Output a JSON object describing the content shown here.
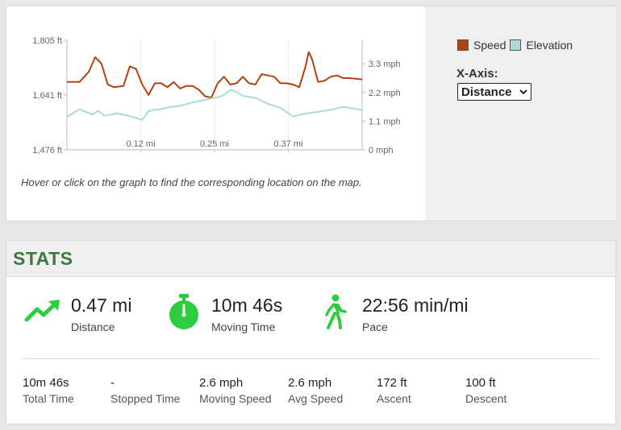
{
  "graph": {
    "hint": "Hover or click on the graph to find the corresponding location on the map.",
    "legend": {
      "speed": "Speed",
      "elevation": "Elevation"
    },
    "x_axis": {
      "label": "X-Axis:",
      "selected": "Distance"
    },
    "colors": {
      "speed": "#b5400f",
      "elevation": "#a9dcd6",
      "grid": "#dddddd"
    }
  },
  "chart_data": {
    "type": "line",
    "x_ticks": [
      "0.12 mi",
      "0.25 mi",
      "0.37 mi"
    ],
    "x_range": [
      0,
      0.47
    ],
    "y_left": {
      "ticks": [
        "1,805 ft",
        "1,641 ft",
        "1,476 ft"
      ],
      "range": [
        1476,
        1805
      ]
    },
    "y_right": {
      "ticks": [
        "3.3 mph",
        "2.2 mph",
        "1.1 mph",
        "0 mph"
      ],
      "range": [
        0,
        4.2
      ]
    },
    "grid": true,
    "series": [
      {
        "name": "Speed",
        "axis": "right",
        "x": [
          0,
          0.02,
          0.035,
          0.045,
          0.055,
          0.065,
          0.075,
          0.09,
          0.1,
          0.11,
          0.12,
          0.13,
          0.14,
          0.15,
          0.16,
          0.17,
          0.18,
          0.19,
          0.2,
          0.21,
          0.22,
          0.23,
          0.24,
          0.25,
          0.26,
          0.27,
          0.28,
          0.29,
          0.3,
          0.31,
          0.32,
          0.33,
          0.34,
          0.35,
          0.36,
          0.37,
          0.38,
          0.385,
          0.39,
          0.4,
          0.41,
          0.42,
          0.43,
          0.44,
          0.45,
          0.47
        ],
        "y": [
          2.6,
          2.6,
          3.0,
          3.55,
          3.3,
          2.5,
          2.4,
          2.45,
          3.2,
          3.1,
          2.5,
          2.1,
          2.55,
          2.55,
          2.4,
          2.6,
          2.35,
          2.45,
          2.45,
          2.3,
          2.05,
          2.0,
          2.55,
          2.8,
          2.5,
          2.55,
          2.8,
          2.55,
          2.5,
          2.9,
          2.85,
          2.8,
          2.55,
          2.55,
          2.5,
          2.4,
          3.2,
          3.75,
          3.5,
          2.6,
          2.65,
          2.8,
          2.85,
          2.75,
          2.75,
          2.7
        ]
      },
      {
        "name": "Elevation",
        "axis": "left",
        "x": [
          0,
          0.02,
          0.04,
          0.05,
          0.06,
          0.08,
          0.1,
          0.12,
          0.13,
          0.14,
          0.15,
          0.16,
          0.18,
          0.2,
          0.22,
          0.24,
          0.25,
          0.26,
          0.27,
          0.28,
          0.3,
          0.32,
          0.34,
          0.36,
          0.38,
          0.4,
          0.42,
          0.44,
          0.45,
          0.47
        ],
        "y": [
          1575,
          1598,
          1582,
          1593,
          1578,
          1585,
          1577,
          1566,
          1592,
          1596,
          1598,
          1603,
          1608,
          1618,
          1626,
          1634,
          1640,
          1656,
          1650,
          1638,
          1632,
          1614,
          1602,
          1576,
          1585,
          1590,
          1596,
          1605,
          1602,
          1595
        ]
      }
    ]
  },
  "stats": {
    "title": "STATS",
    "summary": [
      {
        "value": "0.47 mi",
        "label": "Distance",
        "icon": "trend-up-icon"
      },
      {
        "value": "10m 46s",
        "label": "Moving Time",
        "icon": "stopwatch-icon"
      },
      {
        "value": "22:56 min/mi",
        "label": "Pace",
        "icon": "walking-person-icon"
      }
    ],
    "details": [
      {
        "value": "10m 46s",
        "label": "Total Time"
      },
      {
        "value": "-",
        "label": "Stopped Time"
      },
      {
        "value": "2.6 mph",
        "label": "Moving Speed"
      },
      {
        "value": "2.6 mph",
        "label": "Avg Speed"
      },
      {
        "value": "172 ft",
        "label": "Ascent"
      },
      {
        "value": "100 ft",
        "label": "Descent"
      }
    ],
    "accent": "#2ecc40"
  }
}
